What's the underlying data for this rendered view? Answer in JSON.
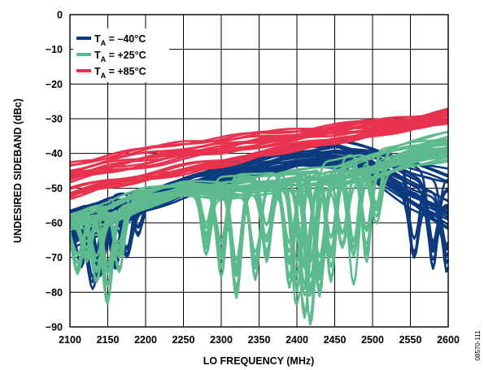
{
  "chart_data": {
    "type": "line",
    "xlabel": "LO FREQUENCY (MHz)",
    "ylabel": "UNDESIRED SIDEBAND (dBc)",
    "xlim": [
      2100,
      2600
    ],
    "ylim": [
      -90,
      0
    ],
    "x_ticks": [
      "2100",
      "2150",
      "2200",
      "2250",
      "2300",
      "2350",
      "2400",
      "2450",
      "2500",
      "2550",
      "2600"
    ],
    "y_ticks": [
      "0",
      "−10",
      "−20",
      "−30",
      "−40",
      "−50",
      "−60",
      "−70",
      "−80",
      "−90"
    ],
    "grid": true,
    "legend_position": "top-left",
    "figure_id": "08570-111",
    "series": [
      {
        "name_main": "T",
        "name_sub": "A",
        "name_rest": " = –40°C",
        "color": "#0d3a7e",
        "envelope_top": [
          [
            2100,
            -54
          ],
          [
            2150,
            -51
          ],
          [
            2200,
            -50
          ],
          [
            2250,
            -46
          ],
          [
            2300,
            -43
          ],
          [
            2350,
            -39
          ],
          [
            2400,
            -36
          ],
          [
            2450,
            -35
          ],
          [
            2500,
            -37
          ],
          [
            2550,
            -39
          ],
          [
            2600,
            -41
          ]
        ],
        "envelope_bottom": [
          [
            2100,
            -68
          ],
          [
            2150,
            -64
          ],
          [
            2200,
            -57
          ],
          [
            2250,
            -53
          ],
          [
            2300,
            -50
          ],
          [
            2350,
            -47
          ],
          [
            2400,
            -45
          ],
          [
            2450,
            -45
          ],
          [
            2500,
            -48
          ],
          [
            2550,
            -57
          ],
          [
            2600,
            -64
          ]
        ],
        "dips": [
          [
            2115,
            -73
          ],
          [
            2130,
            -76
          ],
          [
            2140,
            -72
          ],
          [
            2160,
            -71
          ],
          [
            2175,
            -68
          ],
          [
            2190,
            -62
          ],
          [
            2555,
            -66
          ],
          [
            2580,
            -69
          ],
          [
            2598,
            -70
          ]
        ]
      },
      {
        "name_main": "T",
        "name_sub": "A",
        "name_rest": " = +25°C",
        "color": "#5dba8e",
        "envelope_top": [
          [
            2100,
            -57
          ],
          [
            2150,
            -54
          ],
          [
            2200,
            -50
          ],
          [
            2250,
            -48
          ],
          [
            2300,
            -47
          ],
          [
            2350,
            -46
          ],
          [
            2400,
            -44
          ],
          [
            2450,
            -42
          ],
          [
            2500,
            -39
          ],
          [
            2550,
            -36
          ],
          [
            2600,
            -34
          ]
        ],
        "envelope_bottom": [
          [
            2100,
            -62
          ],
          [
            2150,
            -60
          ],
          [
            2200,
            -56
          ],
          [
            2250,
            -52
          ],
          [
            2300,
            -53
          ],
          [
            2350,
            -52
          ],
          [
            2400,
            -51
          ],
          [
            2450,
            -50
          ],
          [
            2500,
            -48
          ],
          [
            2550,
            -44
          ],
          [
            2600,
            -42
          ]
        ],
        "dips": [
          [
            2110,
            -72
          ],
          [
            2122,
            -69
          ],
          [
            2135,
            -74
          ],
          [
            2150,
            -79
          ],
          [
            2165,
            -70
          ],
          [
            2280,
            -65
          ],
          [
            2300,
            -70
          ],
          [
            2320,
            -75
          ],
          [
            2345,
            -72
          ],
          [
            2360,
            -66
          ],
          [
            2390,
            -72
          ],
          [
            2400,
            -78
          ],
          [
            2410,
            -80
          ],
          [
            2418,
            -82
          ],
          [
            2430,
            -76
          ],
          [
            2445,
            -70
          ],
          [
            2460,
            -68
          ],
          [
            2475,
            -72
          ],
          [
            2492,
            -65
          ],
          [
            2505,
            -60
          ]
        ]
      },
      {
        "name_main": "T",
        "name_sub": "A",
        "name_rest": " = +85°C",
        "color": "#e8334f",
        "envelope_top": [
          [
            2100,
            -41
          ],
          [
            2150,
            -39
          ],
          [
            2200,
            -37
          ],
          [
            2250,
            -35
          ],
          [
            2300,
            -34
          ],
          [
            2350,
            -33
          ],
          [
            2400,
            -32
          ],
          [
            2450,
            -31
          ],
          [
            2500,
            -30
          ],
          [
            2550,
            -29
          ],
          [
            2600,
            -27
          ]
        ],
        "envelope_bottom": [
          [
            2100,
            -53
          ],
          [
            2150,
            -50
          ],
          [
            2200,
            -48
          ],
          [
            2250,
            -46
          ],
          [
            2300,
            -44
          ],
          [
            2350,
            -41
          ],
          [
            2400,
            -39
          ],
          [
            2450,
            -37
          ],
          [
            2500,
            -35
          ],
          [
            2550,
            -33
          ],
          [
            2600,
            -31
          ]
        ],
        "dips": []
      }
    ]
  }
}
